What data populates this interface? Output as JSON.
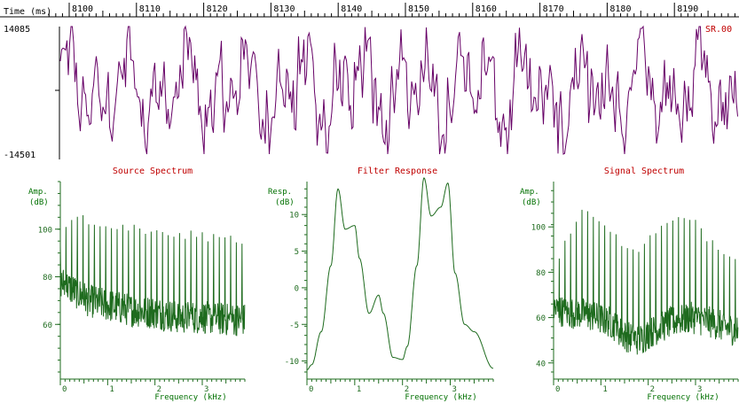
{
  "waveform": {
    "time_label": "Time (ms)",
    "time_ticks": [
      "8100",
      "8110",
      "8120",
      "8130",
      "8140",
      "8150",
      "8160",
      "8170",
      "8180",
      "8190"
    ],
    "amp_max": "14085",
    "amp_min": "-14501",
    "tag": "SR.00",
    "color": "#660066"
  },
  "panels": {
    "source": {
      "title": "Source Spectrum"
    },
    "filter": {
      "title": "Filter Response"
    },
    "signal": {
      "title": "Signal Spectrum"
    }
  },
  "chart_data": [
    {
      "type": "line",
      "title": "Source Spectrum",
      "ylabel_line1": "Amp.",
      "ylabel_line2": "(dB)",
      "xlabel": "Frequency (kHz)",
      "xlim": [
        0,
        3.9
      ],
      "ylim": [
        40,
        120
      ],
      "yticks": [
        "60",
        "80",
        "100"
      ],
      "xticks": [
        "0",
        "1",
        "2",
        "3"
      ],
      "harmonic_spacing_khz": 0.12,
      "envelope_x": [
        0,
        0.3,
        0.6,
        1.0,
        1.5,
        2.0,
        2.5,
        3.0,
        3.5,
        3.9
      ],
      "envelope_peak_db": [
        95,
        110,
        106,
        104,
        103,
        101,
        100,
        99,
        98,
        96
      ],
      "noise_floor_db": [
        78,
        74,
        70,
        68,
        66,
        65,
        63,
        63,
        62,
        62
      ],
      "color": "#1e6b1e"
    },
    {
      "type": "line",
      "title": "Filter Response",
      "ylabel_line1": "Resp.",
      "ylabel_line2": "(dB)",
      "xlabel": "Frequency (kHz)",
      "xlim": [
        0,
        3.9
      ],
      "ylim": [
        -11.5,
        14.5
      ],
      "yticks": [
        "10",
        "5",
        "0",
        "-5",
        "-10"
      ],
      "xticks": [
        "0",
        "1",
        "2",
        "3"
      ],
      "x": [
        0,
        0.1,
        0.3,
        0.5,
        0.65,
        0.8,
        1.0,
        1.1,
        1.3,
        1.5,
        1.6,
        1.8,
        2.0,
        2.1,
        2.3,
        2.45,
        2.6,
        2.8,
        2.95,
        3.1,
        3.3,
        3.5,
        3.9
      ],
      "y": [
        -11.2,
        -10.5,
        -6.0,
        3.0,
        13.5,
        8.0,
        8.5,
        4.0,
        -3.5,
        -1.0,
        -3.5,
        -9.5,
        -9.8,
        -8.0,
        3.0,
        15.0,
        9.8,
        11.0,
        14.3,
        2.0,
        -5.0,
        -6.0,
        -11.0
      ],
      "color": "#1e6b1e"
    },
    {
      "type": "line",
      "title": "Signal Spectrum",
      "ylabel_line1": "Amp.",
      "ylabel_line2": "(dB)",
      "xlabel": "Frequency (kHz)",
      "xlim": [
        0,
        3.9
      ],
      "ylim": [
        36,
        120
      ],
      "yticks": [
        "40",
        "60",
        "80",
        "100"
      ],
      "xticks": [
        "0",
        "1",
        "2",
        "3"
      ],
      "harmonic_spacing_khz": 0.12,
      "envelope_x": [
        0,
        0.3,
        0.6,
        0.9,
        1.2,
        1.5,
        1.8,
        2.1,
        2.5,
        2.9,
        3.3,
        3.6,
        3.9
      ],
      "envelope_peak_db": [
        80,
        98,
        110,
        104,
        100,
        92,
        90,
        98,
        104,
        106,
        95,
        92,
        88
      ],
      "noise_floor_db": [
        64,
        62,
        62,
        60,
        58,
        52,
        50,
        54,
        58,
        60,
        58,
        56,
        54
      ],
      "color": "#1e6b1e"
    }
  ]
}
